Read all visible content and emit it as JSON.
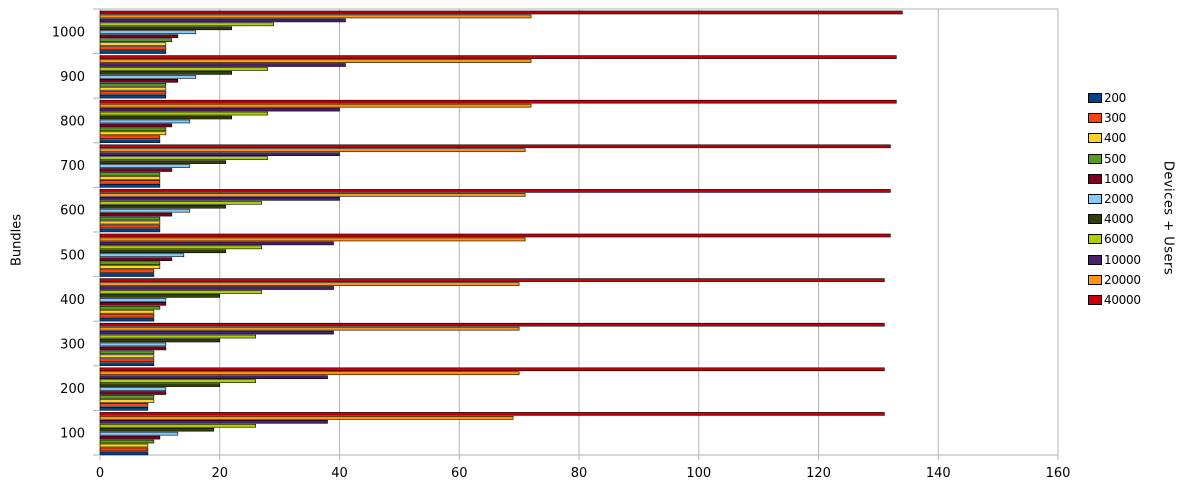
{
  "chart_data": {
    "type": "bar",
    "orientation": "horizontal",
    "categories": [
      "100",
      "200",
      "300",
      "400",
      "500",
      "600",
      "700",
      "800",
      "900",
      "1000"
    ],
    "ylabel": "Bundles",
    "xlabel": "",
    "xlim": [
      0,
      160
    ],
    "xticks": [
      0,
      20,
      40,
      60,
      80,
      100,
      120,
      140,
      160
    ],
    "grid": true,
    "legend_title": "Devices + Users",
    "legend_position": "right",
    "series": [
      {
        "name": "200",
        "color": "#004586",
        "values": [
          8,
          8,
          9,
          9,
          9,
          10,
          10,
          10,
          11,
          11
        ]
      },
      {
        "name": "300",
        "color": "#ff420e",
        "values": [
          8,
          8,
          9,
          9,
          9,
          10,
          10,
          10,
          11,
          11
        ]
      },
      {
        "name": "400",
        "color": "#ffd320",
        "values": [
          8,
          9,
          9,
          9,
          10,
          10,
          10,
          11,
          11,
          11
        ]
      },
      {
        "name": "500",
        "color": "#579d1c",
        "values": [
          9,
          9,
          9,
          10,
          10,
          10,
          10,
          11,
          11,
          12
        ]
      },
      {
        "name": "1000",
        "color": "#7e0021",
        "values": [
          10,
          11,
          11,
          11,
          12,
          12,
          12,
          12,
          13,
          13
        ]
      },
      {
        "name": "2000",
        "color": "#83caff",
        "values": [
          13,
          11,
          11,
          11,
          14,
          15,
          15,
          15,
          16,
          16
        ]
      },
      {
        "name": "4000",
        "color": "#314004",
        "values": [
          19,
          20,
          20,
          20,
          21,
          21,
          21,
          22,
          22,
          22
        ]
      },
      {
        "name": "6000",
        "color": "#aecf00",
        "values": [
          26,
          26,
          26,
          27,
          27,
          27,
          28,
          28,
          28,
          29
        ]
      },
      {
        "name": "10000",
        "color": "#4b1f6f",
        "values": [
          38,
          38,
          39,
          39,
          39,
          40,
          40,
          40,
          41,
          41
        ]
      },
      {
        "name": "20000",
        "color": "#ff950e",
        "values": [
          69,
          70,
          70,
          70,
          71,
          71,
          71,
          72,
          72,
          72
        ]
      },
      {
        "name": "40000",
        "color": "#c5000b",
        "values": [
          131,
          131,
          131,
          131,
          132,
          132,
          132,
          133,
          133,
          134
        ]
      }
    ]
  }
}
